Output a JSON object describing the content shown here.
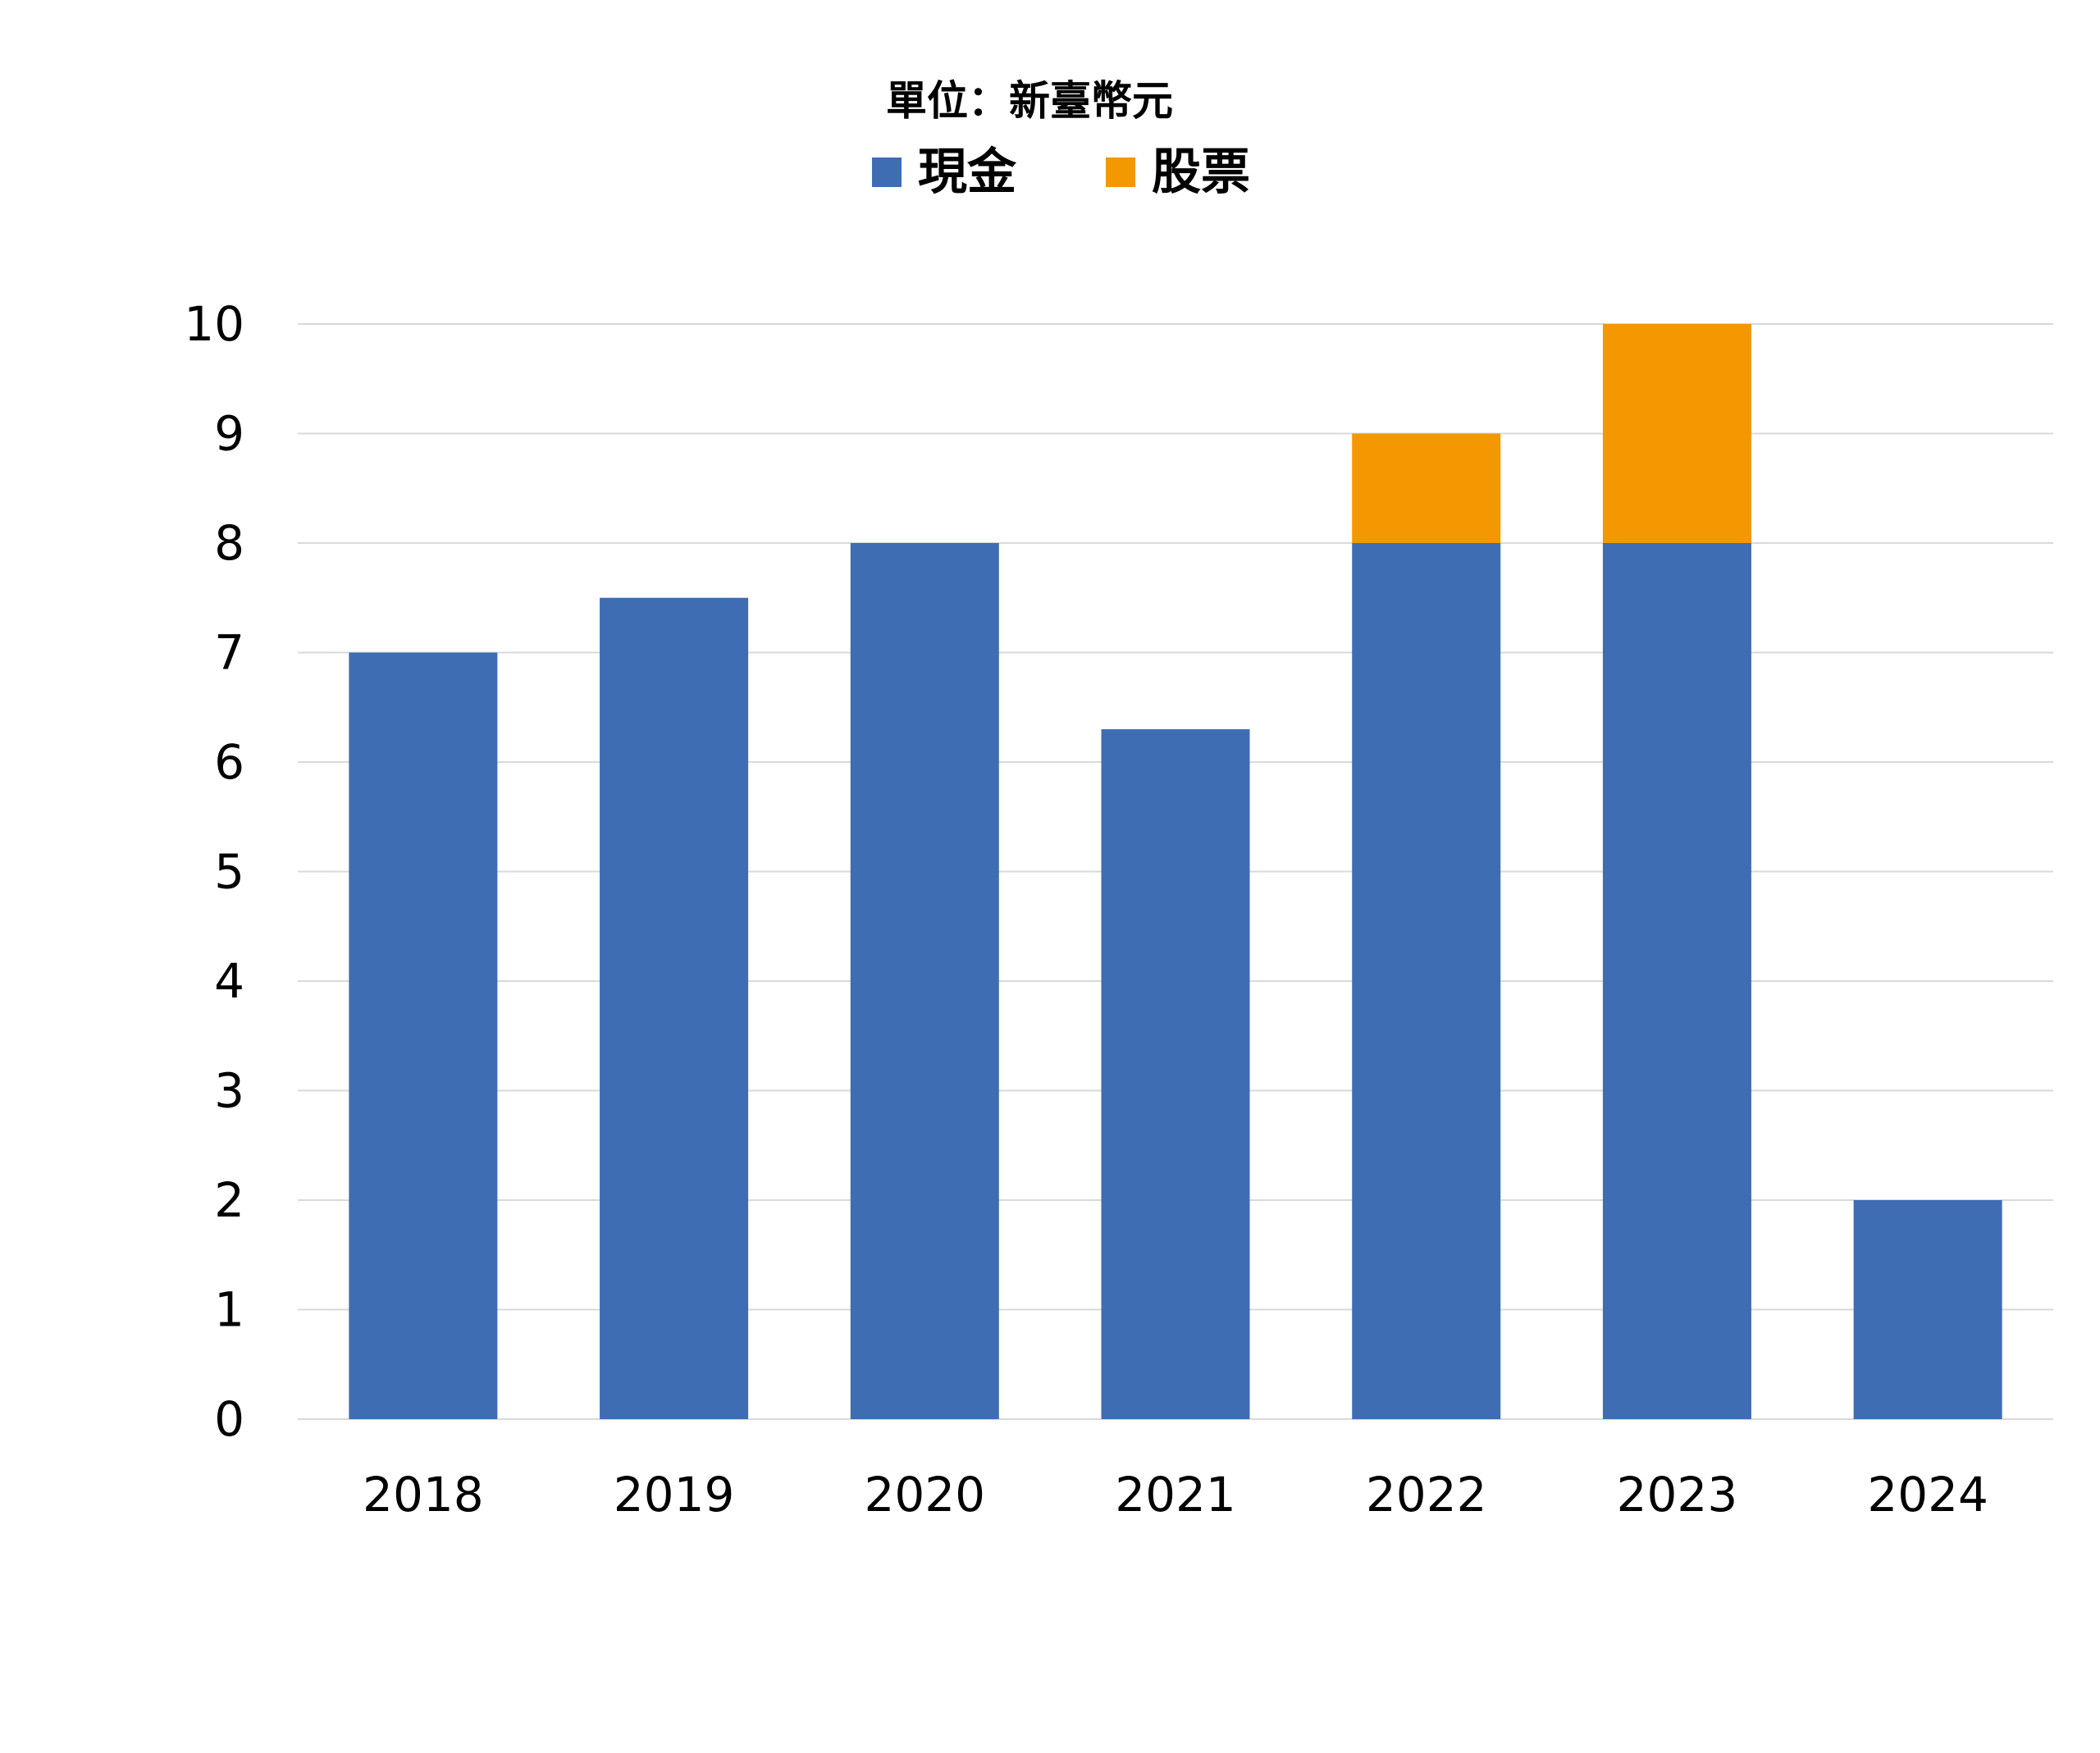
{
  "chart_data": {
    "type": "bar",
    "stacked": true,
    "unit_label": "單位：新臺幣元",
    "categories": [
      "2018",
      "2019",
      "2020",
      "2021",
      "2022",
      "2023",
      "2024"
    ],
    "series": [
      {
        "name": "現金",
        "color": "#3f6db3",
        "values": [
          7,
          7.5,
          8,
          6.3,
          8,
          8,
          2
        ]
      },
      {
        "name": "股票",
        "color": "#f39800",
        "values": [
          0,
          0,
          0,
          0,
          1,
          2,
          0
        ]
      }
    ],
    "ylim": [
      0,
      10
    ],
    "yticks": [
      "0",
      "1",
      "2",
      "3",
      "4",
      "5",
      "6",
      "7",
      "8",
      "9",
      "10"
    ],
    "grid": true,
    "gridline_color": "#d9d9d9",
    "legend_position": "top"
  }
}
